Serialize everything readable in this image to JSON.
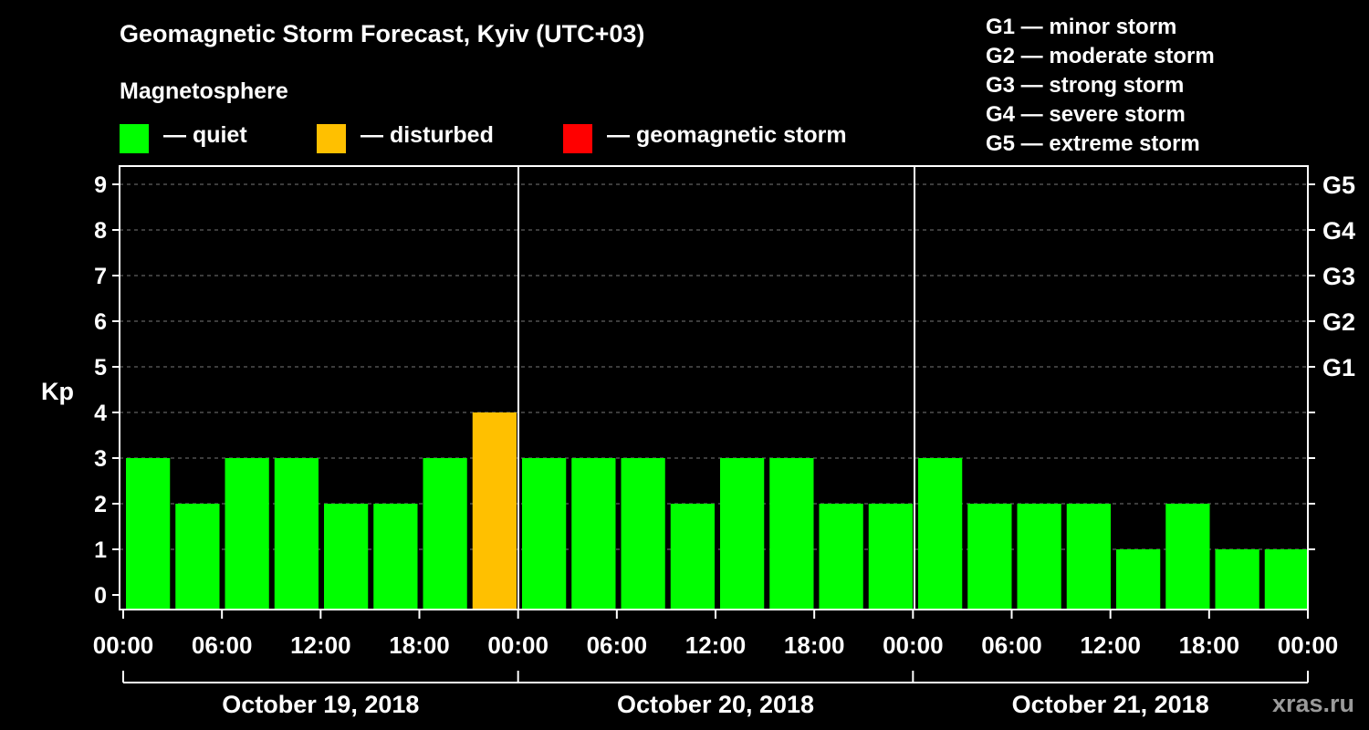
{
  "title": "Geomagnetic Storm Forecast, Kyiv (UTC+03)",
  "section_label": "Magnetosphere",
  "legend": [
    {
      "label": "— quiet",
      "color": "#00ff00"
    },
    {
      "label": "— disturbed",
      "color": "#ffc000"
    },
    {
      "label": "— geomagnetic storm",
      "color": "#ff0000"
    }
  ],
  "storm_scale": [
    "G1 — minor storm",
    "G2 — moderate storm",
    "G3 — strong storm",
    "G4 — severe storm",
    "G5 — extreme storm"
  ],
  "watermark": "xras.ru",
  "chart_data": {
    "type": "bar",
    "title": "Geomagnetic Storm Forecast, Kyiv (UTC+03)",
    "ylabel": "Kp",
    "ylim": [
      0,
      9
    ],
    "yticks": [
      "0",
      "1",
      "2",
      "3",
      "4",
      "5",
      "6",
      "7",
      "8",
      "9"
    ],
    "right_ticks": [
      {
        "kp": 5,
        "label": "G1"
      },
      {
        "kp": 6,
        "label": "G2"
      },
      {
        "kp": 7,
        "label": "G3"
      },
      {
        "kp": 8,
        "label": "G4"
      },
      {
        "kp": 9,
        "label": "G5"
      }
    ],
    "grid": true,
    "interval_hours": 3,
    "xtick_labels": [
      "00:00",
      "06:00",
      "12:00",
      "18:00",
      "00:00",
      "06:00",
      "12:00",
      "18:00",
      "00:00",
      "06:00",
      "12:00",
      "18:00",
      "00:00"
    ],
    "days": [
      "October 19, 2018",
      "October 20, 2018",
      "October 21, 2018"
    ],
    "values": [
      3,
      2,
      3,
      3,
      2,
      2,
      3,
      4,
      3,
      3,
      3,
      2,
      3,
      3,
      2,
      2,
      3,
      2,
      2,
      2,
      1,
      2,
      1,
      1
    ],
    "colors": {
      "quiet": "#00ff00",
      "disturbed": "#ffc000",
      "storm": "#ff0000"
    }
  }
}
